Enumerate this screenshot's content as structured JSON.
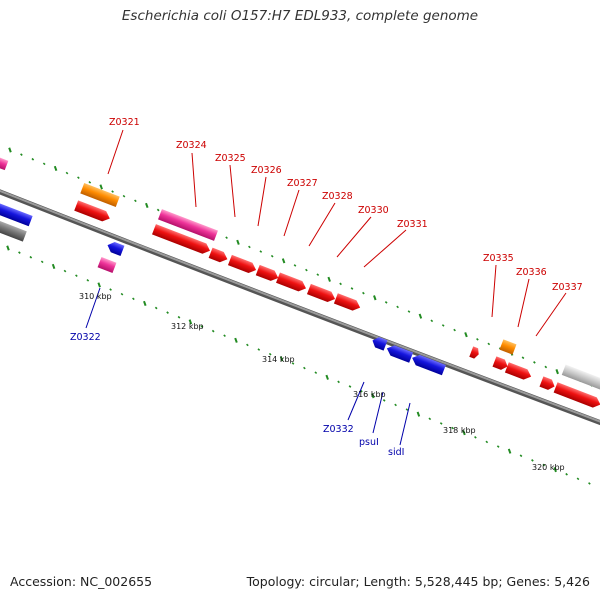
{
  "title": "Escherichia coli O157:H7 EDL933, complete genome",
  "footer": {
    "accession": "Accession: NC_002655",
    "summary": "Topology: circular; Length: 5,528,445 bp; Genes: 5,426"
  },
  "colors": {
    "backbone": "#7a7a7a",
    "label_forward": "#cc0000",
    "label_reverse": "#0000aa",
    "tick_dash": "#228b22",
    "red": "#ee1111",
    "blue": "#1515dd",
    "magenta": "#ee3399",
    "orange": "#ff8c00",
    "gray": "#777777",
    "lightgray": "#cccccc"
  },
  "scale_labels": [
    "310 kbp",
    "312 kbp",
    "314 kbp",
    "316 kbp",
    "318 kbp",
    "320 kbp"
  ],
  "gene_labels_forward": [
    "Z0321",
    "Z0324",
    "Z0325",
    "Z0326",
    "Z0327",
    "Z0328",
    "Z0330",
    "Z0331",
    "Z0335",
    "Z0336",
    "Z0337"
  ],
  "gene_labels_reverse": [
    "Z0322",
    "Z0332",
    "psuI",
    "sidI"
  ]
}
